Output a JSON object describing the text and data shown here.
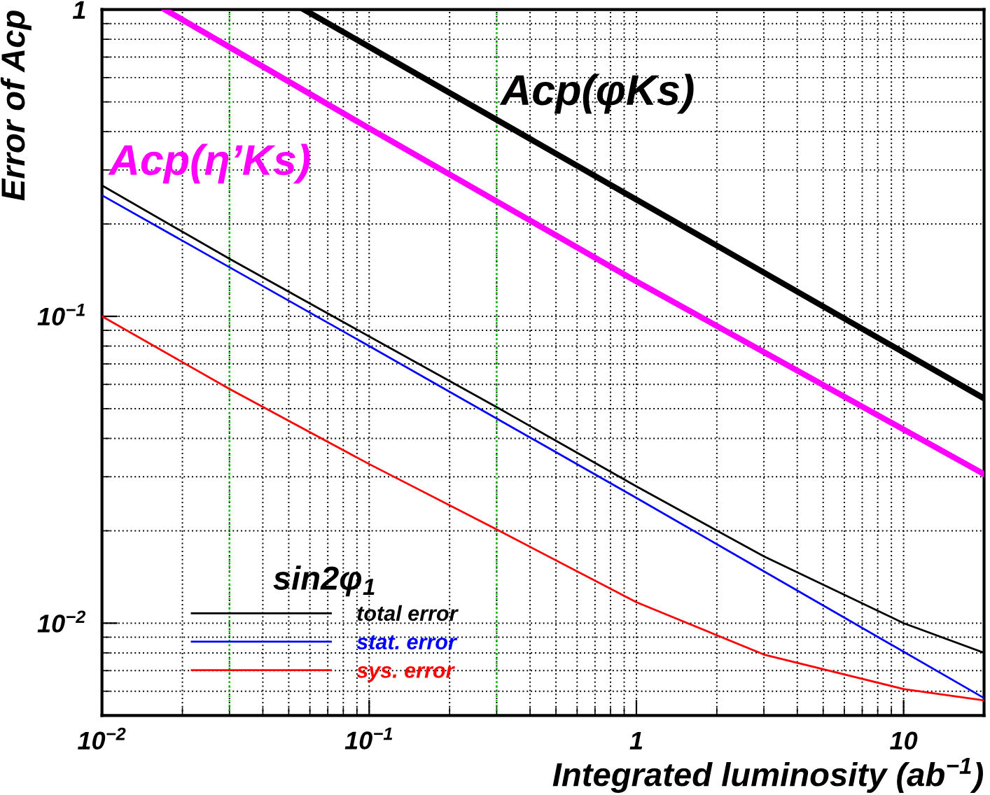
{
  "chart_data": {
    "type": "line",
    "xlabel": "Integrated luminosity (ab$^{−1}$)",
    "ylabel": "Error of Acp",
    "legend_title": "sin2φ$_{1}$",
    "log": "xy",
    "xlim": [
      0.01,
      20
    ],
    "ylim": [
      0.005,
      1
    ],
    "xticks": [
      {
        "value": 0.01,
        "label": "10$^{−2}$"
      },
      {
        "value": 0.1,
        "label": "10$^{−1}$"
      },
      {
        "value": 1,
        "label": "1"
      },
      {
        "value": 10,
        "label": "10"
      }
    ],
    "yticks": [
      {
        "value": 0.01,
        "label": "10$^{−2}$"
      },
      {
        "value": 0.1,
        "label": "10$^{−1}$"
      },
      {
        "value": 1,
        "label": "1"
      }
    ],
    "grid": true,
    "legend": "bottom left",
    "line_style": "solid",
    "marker": "none",
    "series": [
      {
        "color": "#000000",
        "x": [
          0.057,
          20
        ],
        "values": [
          1,
          0.054
        ]
      },
      {
        "color": "#ff00ff",
        "x": [
          0.0172,
          0.1,
          1,
          20
        ],
        "values": [
          1,
          0.41,
          0.13,
          0.0306
        ]
      },
      {
        "name": "total error",
        "color": "#000000",
        "x": [
          0.01,
          0.03,
          0.1,
          0.3,
          1,
          3,
          10,
          20
        ],
        "values": [
          0.267,
          0.154,
          0.086,
          0.0506,
          0.0279,
          0.0165,
          0.01,
          0.008
        ]
      },
      {
        "name": "stat. error",
        "color": "#0000ff",
        "x": [
          0.01,
          0.1,
          1,
          20
        ],
        "values": [
          0.248,
          0.08,
          0.0256,
          0.0057
        ]
      },
      {
        "name": "sys. error",
        "color": "#ff0000",
        "x": [
          0.01,
          0.03,
          0.1,
          0.3,
          1,
          3,
          10,
          20
        ],
        "values": [
          0.1,
          0.058,
          0.033,
          0.0202,
          0.0117,
          0.0079,
          0.0061,
          0.0056
        ]
      }
    ],
    "annotations": [
      "Acp(φKs)",
      "Acp(η’Ks)"
    ],
    "ref_lines": [
      {
        "axis": "x",
        "value": 0.03,
        "color": "#00cc00",
        "line_style": "dotted"
      },
      {
        "axis": "x",
        "value": 0.3,
        "color": "#00cc00",
        "line_style": "dotted"
      }
    ]
  }
}
